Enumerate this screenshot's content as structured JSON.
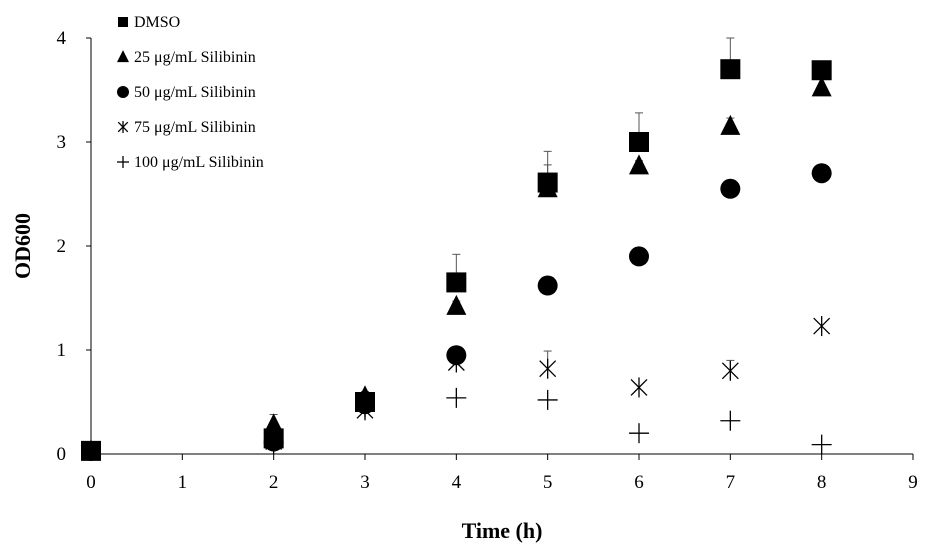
{
  "chart_data": {
    "type": "scatter",
    "title": "",
    "xlabel": "Time (h)",
    "ylabel": "OD600",
    "xlim": [
      0,
      9
    ],
    "ylim": [
      0,
      4
    ],
    "x_ticks": [
      "0",
      "1",
      "2",
      "3",
      "4",
      "5",
      "6",
      "7",
      "8",
      "9"
    ],
    "y_ticks": [
      "0",
      "1",
      "2",
      "3",
      "4"
    ],
    "grid": false,
    "legend_position": "top-left",
    "series": [
      {
        "name": "DMSO",
        "marker": "square",
        "color": "#000000",
        "points": [
          {
            "x": 0,
            "y": 0.03,
            "err": 0
          },
          {
            "x": 2,
            "y": 0.15,
            "err": 0.05
          },
          {
            "x": 3,
            "y": 0.5,
            "err": 0.04
          },
          {
            "x": 4,
            "y": 1.65,
            "err": 0.27
          },
          {
            "x": 5,
            "y": 2.61,
            "err": 0.3
          },
          {
            "x": 6,
            "y": 3.0,
            "err": 0.28
          },
          {
            "x": 7,
            "y": 3.7,
            "err": 0.3
          },
          {
            "x": 8,
            "y": 3.69,
            "err": 0
          }
        ]
      },
      {
        "name": "25 μg/mL Silibinin",
        "marker": "triangle",
        "color": "#000000",
        "points": [
          {
            "x": 0,
            "y": 0.03,
            "err": 0
          },
          {
            "x": 2,
            "y": 0.28,
            "err": 0.1
          },
          {
            "x": 3,
            "y": 0.55,
            "err": 0.05
          },
          {
            "x": 4,
            "y": 1.42,
            "err": 0.05
          },
          {
            "x": 5,
            "y": 2.55,
            "err": 0.23
          },
          {
            "x": 6,
            "y": 2.77,
            "err": 0.05
          },
          {
            "x": 7,
            "y": 3.15,
            "err": 0.08
          },
          {
            "x": 8,
            "y": 3.52,
            "err": 0
          }
        ]
      },
      {
        "name": "50 μg/mL Silibinin",
        "marker": "circle",
        "color": "#000000",
        "points": [
          {
            "x": 0,
            "y": 0.03,
            "err": 0
          },
          {
            "x": 2,
            "y": 0.12,
            "err": 0
          },
          {
            "x": 3,
            "y": 0.48,
            "err": 0
          },
          {
            "x": 4,
            "y": 0.95,
            "err": 0.07
          },
          {
            "x": 5,
            "y": 1.62,
            "err": 0
          },
          {
            "x": 6,
            "y": 1.9,
            "err": 0
          },
          {
            "x": 7,
            "y": 2.55,
            "err": 0
          },
          {
            "x": 8,
            "y": 2.7,
            "err": 0
          }
        ]
      },
      {
        "name": "75 μg/mL Silibinin",
        "marker": "asterisk",
        "color": "#000000",
        "points": [
          {
            "x": 0,
            "y": 0.03,
            "err": 0
          },
          {
            "x": 2,
            "y": 0.12,
            "err": 0
          },
          {
            "x": 3,
            "y": 0.42,
            "err": 0
          },
          {
            "x": 4,
            "y": 0.88,
            "err": 0.1
          },
          {
            "x": 5,
            "y": 0.82,
            "err": 0.17
          },
          {
            "x": 6,
            "y": 0.64,
            "err": 0
          },
          {
            "x": 7,
            "y": 0.8,
            "err": 0.1
          },
          {
            "x": 8,
            "y": 1.23,
            "err": 0
          }
        ]
      },
      {
        "name": "100 μg/mL Silibinin",
        "marker": "plus",
        "color": "#000000",
        "points": [
          {
            "x": 0,
            "y": 0.03,
            "err": 0
          },
          {
            "x": 2,
            "y": 0.1,
            "err": 0
          },
          {
            "x": 3,
            "y": 0.45,
            "err": 0
          },
          {
            "x": 4,
            "y": 0.54,
            "err": 0
          },
          {
            "x": 5,
            "y": 0.52,
            "err": 0
          },
          {
            "x": 6,
            "y": 0.2,
            "err": 0
          },
          {
            "x": 7,
            "y": 0.32,
            "err": 0
          },
          {
            "x": 8,
            "y": 0.09,
            "err": 0
          }
        ]
      }
    ]
  }
}
